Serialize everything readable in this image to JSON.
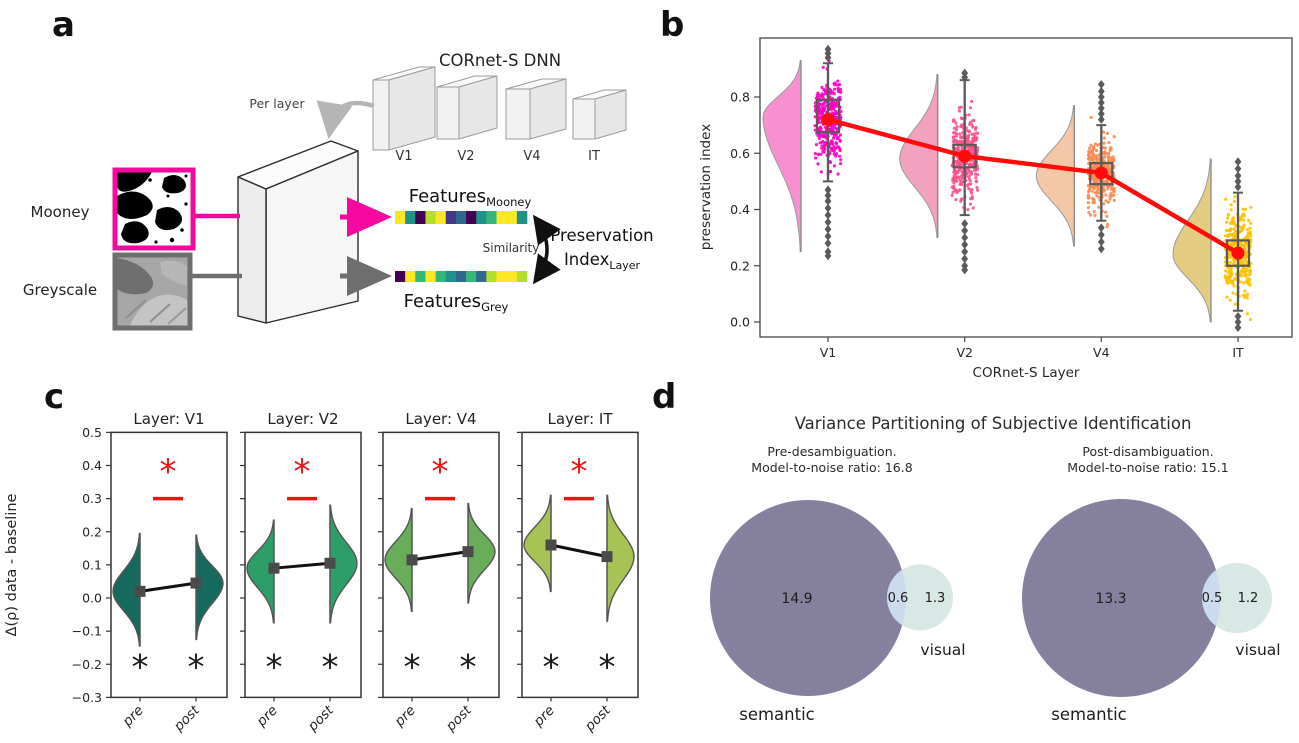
{
  "figure": {
    "panel_labels": {
      "a": "a",
      "b": "b",
      "c": "c",
      "d": "d"
    }
  },
  "panel_a": {
    "dnn_title": "CORnet-S DNN",
    "per_layer_label": "Per layer",
    "dnn_layers": [
      "V1",
      "V2",
      "V4",
      "IT"
    ],
    "input_labels": {
      "mooney": "Mooney",
      "greyscale": "Greyscale"
    },
    "features_mooney": {
      "base": "Features",
      "sub": "Mooney"
    },
    "features_grey": {
      "base": "Features",
      "sub": "Grey"
    },
    "similarity_label": "Similarity",
    "preservation_label": {
      "line1": "Preservation",
      "line2": "Index",
      "line2_sub": "Layer"
    },
    "colors": {
      "mooney_accent": "#F5089E",
      "grey_accent": "#6E6E6E"
    },
    "mooney_vector": [
      "#fde725",
      "#21918c",
      "#440154",
      "#b5de2b",
      "#fde725",
      "#443983",
      "#31688e",
      "#440154",
      "#21918c",
      "#35b779",
      "#fde725",
      "#fde725",
      "#21918c"
    ],
    "grey_vector": [
      "#440154",
      "#fde725",
      "#35b779",
      "#fde725",
      "#35b779",
      "#21918c",
      "#31688e",
      "#35b779",
      "#31688e",
      "#b5de2b",
      "#fde725",
      "#fde725",
      "#b5de2b"
    ]
  },
  "chart_data": [
    {
      "panel": "b",
      "type": "raincloud",
      "xlabel": "CORnet-S Layer",
      "ylabel": "preservation index",
      "categories": [
        "V1",
        "V2",
        "V4",
        "IT"
      ],
      "yticks": [
        0.0,
        0.2,
        0.4,
        0.6,
        0.8
      ],
      "ylim": [
        -0.07,
        1.0
      ],
      "legend": "none",
      "grid": false,
      "mean_color": "#FF0B0B",
      "layers": [
        {
          "name": "V1",
          "mean": 0.72,
          "median": 0.72,
          "q1": 0.675,
          "q3": 0.79,
          "whisker_low": 0.5,
          "whisker_high": 0.92,
          "violin_peak": 0.73,
          "violin_min": 0.25,
          "violin_max": 0.93,
          "point_sd": 0.075,
          "point_min": 0.45,
          "point_max": 0.96,
          "outliers_high": [
            0.94,
            0.955,
            0.97
          ],
          "outliers_low": [
            0.47,
            0.45,
            0.43,
            0.405,
            0.38,
            0.355,
            0.33,
            0.305,
            0.28,
            0.25,
            0.235
          ],
          "point_color": "#FF00C3",
          "violin_color": "#F78FD0"
        },
        {
          "name": "V2",
          "mean": 0.59,
          "median": 0.585,
          "q1": 0.55,
          "q3": 0.63,
          "whisker_low": 0.38,
          "whisker_high": 0.86,
          "violin_peak": 0.58,
          "violin_min": 0.3,
          "violin_max": 0.88,
          "point_sd": 0.07,
          "point_min": 0.37,
          "point_max": 0.89,
          "outliers_high": [
            0.87,
            0.885
          ],
          "outliers_low": [
            0.35,
            0.325,
            0.3,
            0.275,
            0.25,
            0.225,
            0.2,
            0.185
          ],
          "point_color": "#F85389",
          "violin_color": "#F2A2BE"
        },
        {
          "name": "V4",
          "mean": 0.53,
          "median": 0.52,
          "q1": 0.49,
          "q3": 0.565,
          "whisker_low": 0.36,
          "whisker_high": 0.7,
          "violin_peak": 0.52,
          "violin_min": 0.27,
          "violin_max": 0.77,
          "point_sd": 0.06,
          "point_min": 0.3,
          "point_max": 0.86,
          "outliers_high": [
            0.72,
            0.74,
            0.76,
            0.78,
            0.8,
            0.82,
            0.845
          ],
          "outliers_low": [
            0.335,
            0.31,
            0.285,
            0.26
          ],
          "point_color": "#FB8A51",
          "violin_color": "#F4C7A6"
        },
        {
          "name": "IT",
          "mean": 0.245,
          "median": 0.235,
          "q1": 0.2,
          "q3": 0.29,
          "whisker_low": 0.04,
          "whisker_high": 0.46,
          "violin_peak": 0.24,
          "violin_min": 0.0,
          "violin_max": 0.58,
          "point_sd": 0.08,
          "point_min": -0.02,
          "point_max": 0.55,
          "outliers_high": [
            0.48,
            0.5,
            0.52,
            0.545,
            0.57
          ],
          "outliers_low": [
            0.02,
            0.0,
            -0.02
          ],
          "point_color": "#FDC204",
          "violin_color": "#E3CC81"
        }
      ]
    },
    {
      "panel": "c",
      "type": "paired-half-violin",
      "ylabel": "Δ(ρ) data - baseline",
      "yticks": [
        0.5,
        0.4,
        0.3,
        0.2,
        0.1,
        0.0,
        -0.1,
        -0.2,
        -0.3
      ],
      "ylim": [
        -0.3,
        0.5
      ],
      "conditions": [
        "pre",
        "post"
      ],
      "sig_color": "#F21111",
      "sig_pair_y": 0.38,
      "sig_bar_y": 0.3,
      "sig_single_y": -0.21,
      "subplots": [
        {
          "title": "Layer: V1",
          "color": "#16695D",
          "pre": {
            "mean": 0.02,
            "violin_min": -0.145,
            "violin_max": 0.195
          },
          "post": {
            "mean": 0.045,
            "violin_min": -0.125,
            "violin_max": 0.19
          }
        },
        {
          "title": "Layer: V2",
          "color": "#2E9E68",
          "pre": {
            "mean": 0.09,
            "violin_min": -0.075,
            "violin_max": 0.235
          },
          "post": {
            "mean": 0.105,
            "violin_min": -0.075,
            "violin_max": 0.28
          }
        },
        {
          "title": "Layer: V4",
          "color": "#69AD5B",
          "pre": {
            "mean": 0.115,
            "violin_min": -0.04,
            "violin_max": 0.27
          },
          "post": {
            "mean": 0.14,
            "violin_min": -0.015,
            "violin_max": 0.285
          }
        },
        {
          "title": "Layer: IT",
          "color": "#A8C355",
          "pre": {
            "mean": 0.16,
            "violin_min": 0.02,
            "violin_max": 0.31
          },
          "post": {
            "mean": 0.125,
            "violin_min": -0.07,
            "violin_max": 0.31
          }
        }
      ]
    },
    {
      "panel": "d",
      "type": "venn",
      "title": "Variance Partitioning of Subjective Identification",
      "colors": {
        "semantic": "#84809E",
        "visual": "#D8E8E4",
        "overlap": "#CBDAEC"
      },
      "diagrams": [
        {
          "subtitle_line1": "Pre-desambiguation.",
          "subtitle_line2": "Model-to-noise ratio: 16.8",
          "semantic": 14.9,
          "overlap": 0.6,
          "visual": 1.3,
          "labels": {
            "big": "semantic",
            "small": "visual"
          }
        },
        {
          "subtitle_line1": "Post-disambiguation.",
          "subtitle_line2": "Model-to-noise ratio: 15.1",
          "semantic": 13.3,
          "overlap": 0.5,
          "visual": 1.2,
          "labels": {
            "big": "semantic",
            "small": "visual"
          }
        }
      ]
    }
  ]
}
